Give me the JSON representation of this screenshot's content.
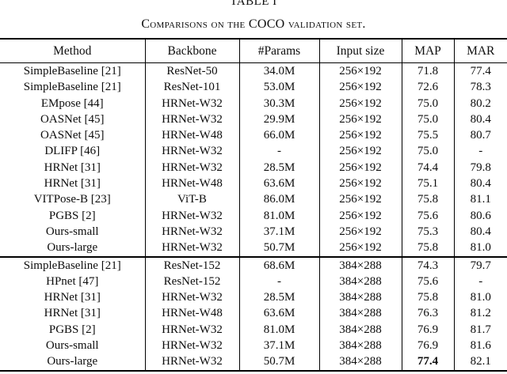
{
  "title": "TABLE I",
  "caption": "Comparisons on the COCO validation set.",
  "table": {
    "columns": [
      "Method",
      "Backbone",
      "#Params",
      "Input size",
      "MAP",
      "MAR"
    ],
    "sections": [
      {
        "rows": [
          [
            "SimpleBaseline [21]",
            "ResNet-50",
            "34.0M",
            "256×192",
            "71.8",
            "77.4"
          ],
          [
            "SimpleBaseline [21]",
            "ResNet-101",
            "53.0M",
            "256×192",
            "72.6",
            "78.3"
          ],
          [
            "EMpose [44]",
            "HRNet-W32",
            "30.3M",
            "256×192",
            "75.0",
            "80.2"
          ],
          [
            "OASNet [45]",
            "HRNet-W32",
            "29.9M",
            "256×192",
            "75.0",
            "80.4"
          ],
          [
            "OASNet [45]",
            "HRNet-W48",
            "66.0M",
            "256×192",
            "75.5",
            "80.7"
          ],
          [
            "DLIFP [46]",
            "HRNet-W32",
            "-",
            "256×192",
            "75.0",
            "-"
          ],
          [
            "HRNet [31]",
            "HRNet-W32",
            "28.5M",
            "256×192",
            "74.4",
            "79.8"
          ],
          [
            "HRNet [31]",
            "HRNet-W48",
            "63.6M",
            "256×192",
            "75.1",
            "80.4"
          ],
          [
            "VITPose-B [23]",
            "ViT-B",
            "86.0M",
            "256×192",
            "75.8",
            "81.1"
          ],
          [
            "PGBS [2]",
            "HRNet-W32",
            "81.0M",
            "256×192",
            "75.6",
            "80.6"
          ],
          [
            "Ours-small",
            "HRNet-W32",
            "37.1M",
            "256×192",
            "75.3",
            "80.4"
          ],
          [
            "Ours-large",
            "HRNet-W32",
            "50.7M",
            "256×192",
            "75.8",
            "81.0"
          ]
        ]
      },
      {
        "rows": [
          [
            "SimpleBaseline [21]",
            "ResNet-152",
            "68.6M",
            "384×288",
            "74.3",
            "79.7"
          ],
          [
            "HPnet [47]",
            "ResNet-152",
            "-",
            "384×288",
            "75.6",
            "-"
          ],
          [
            "HRNet [31]",
            "HRNet-W32",
            "28.5M",
            "384×288",
            "75.8",
            "81.0"
          ],
          [
            "HRNet [31]",
            "HRNet-W48",
            "63.6M",
            "384×288",
            "76.3",
            "81.2"
          ],
          [
            "PGBS [2]",
            "HRNet-W32",
            "81.0M",
            "384×288",
            "76.9",
            "81.7"
          ],
          [
            "Ours-small",
            "HRNet-W32",
            "37.1M",
            "384×288",
            "76.9",
            "81.6"
          ],
          [
            "Ours-large",
            "HRNet-W32",
            "50.7M",
            "384×288",
            "77.4",
            "82.1"
          ]
        ]
      }
    ],
    "bold_cells": [
      {
        "section": 1,
        "row": 6,
        "col": 4
      }
    ]
  }
}
